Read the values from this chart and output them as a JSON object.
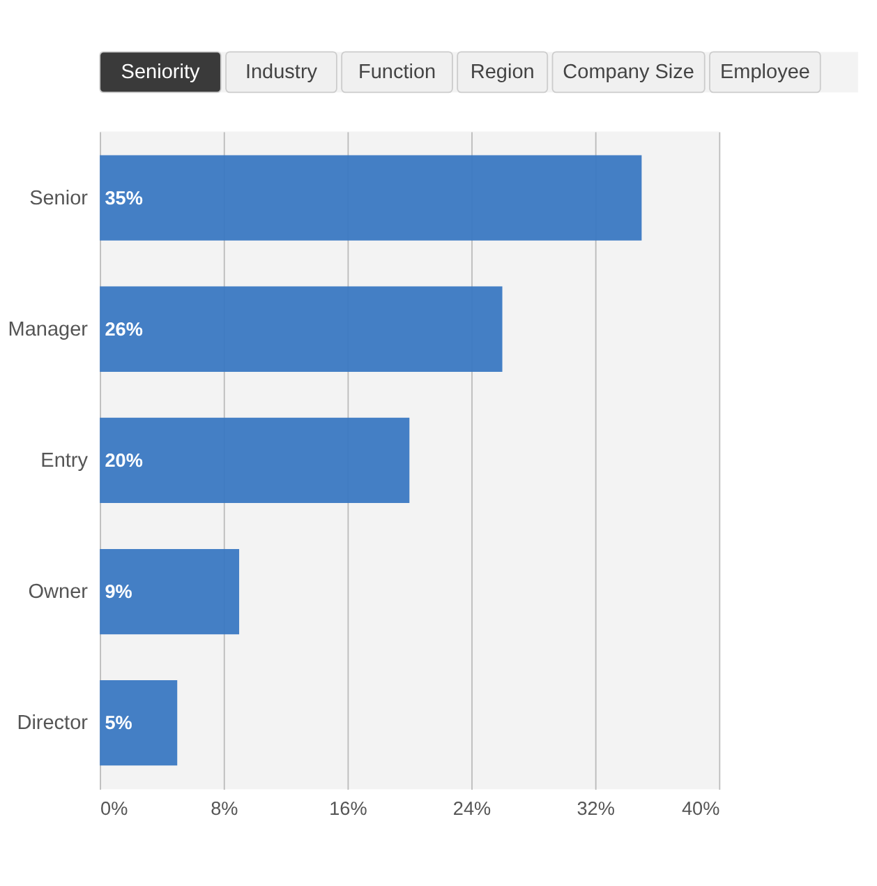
{
  "chart_data": {
    "type": "bar",
    "orientation": "horizontal",
    "categories": [
      "Senior",
      "Manager",
      "Entry",
      "Owner",
      "Director"
    ],
    "values": [
      35,
      26,
      20,
      9,
      5
    ],
    "value_labels": [
      "35%",
      "26%",
      "20%",
      "9%",
      "5%"
    ],
    "color": "#3a78c2",
    "xlim": [
      0,
      40
    ],
    "xticks": [
      {
        "value": 0,
        "label": "0%"
      },
      {
        "value": 8,
        "label": "8%"
      },
      {
        "value": 16,
        "label": "16%"
      },
      {
        "value": 24,
        "label": "24%"
      },
      {
        "value": 32,
        "label": "32%"
      },
      {
        "value": 40,
        "label": "40%"
      }
    ],
    "grid": "x",
    "annotations": [
      "Seniority",
      "Industry",
      "Function",
      "Region",
      "Company Size",
      "Employee"
    ]
  }
}
